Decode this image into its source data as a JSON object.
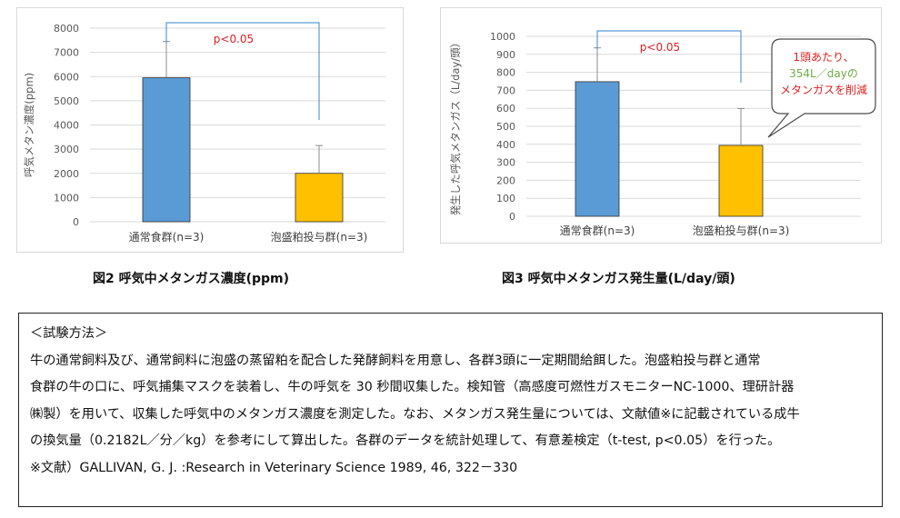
{
  "chart_data": [
    {
      "type": "bar",
      "title": "",
      "ylabel": "呼気メタン濃度(ppm)",
      "xlabel": "",
      "ylim": [
        0,
        8000
      ],
      "yticks": [
        0,
        1000,
        2000,
        3000,
        4000,
        5000,
        6000,
        7000,
        8000
      ],
      "categories": [
        "通常食群(n=3)",
        "泡盛粕投与群(n=3)"
      ],
      "values": [
        5950,
        2000
      ],
      "errors": [
        1500,
        1150
      ],
      "colors": [
        "#5b9bd5",
        "#ffc000"
      ],
      "grid": true,
      "significance": "p<0.05"
    },
    {
      "type": "bar",
      "title": "",
      "ylabel": "発生した呼気メタンガス（L/day/頭）",
      "xlabel": "",
      "ylim": [
        0,
        1000
      ],
      "yticks": [
        0,
        100,
        200,
        300,
        400,
        500,
        600,
        700,
        800,
        900,
        1000
      ],
      "categories": [
        "通常食群(n=3)",
        "泡盛粕投与群(n=3)"
      ],
      "values": [
        748,
        394
      ],
      "errors": [
        188,
        205
      ],
      "colors": [
        "#5b9bd5",
        "#ffc000"
      ],
      "grid": true,
      "significance": "p<0.05",
      "annotation": {
        "line1": "1頭あたり、",
        "line2": "354L／dayの",
        "line3": "メタンガスを削減"
      }
    }
  ],
  "captions": {
    "fig2": "図2  呼気中メタンガス濃度(ppm)",
    "fig3": "図3  呼気中メタンガス発生量(L/day/頭)"
  },
  "methods": {
    "heading": "＜試験方法＞",
    "lines": [
      "牛の通常飼料及び、通常飼料に泡盛の蒸留粕を配合した発酵飼料を用意し、各群3頭に一定期間給餌した。泡盛粕投与群と通常",
      "食群の牛の口に、呼気捕集マスクを装着し、牛の呼気を 30 秒間収集した。検知管（高感度可燃性ガスモニターNC-1000、理研計器",
      "㈱製）を用いて、収集した呼気中のメタンガス濃度を測定した。なお、メタンガス発生量については、文献値※に記載されている成牛",
      "の換気量（0.2182L／分／kg）を参考にして算出した。各群のデータを統計処理して、有意差検定（t-test, p<0.05）を行った。"
    ],
    "reference": "※文献）GALLIVAN, G. J. :Research  in  Veterinary  Science  1989, 46, 322－330"
  }
}
